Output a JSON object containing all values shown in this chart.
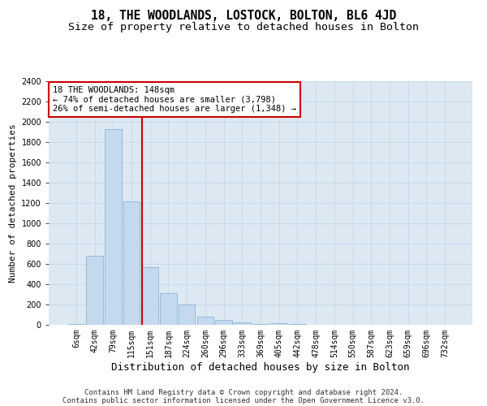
{
  "title1": "18, THE WOODLANDS, LOSTOCK, BOLTON, BL6 4JD",
  "title2": "Size of property relative to detached houses in Bolton",
  "xlabel": "Distribution of detached houses by size in Bolton",
  "ylabel": "Number of detached properties",
  "categories": [
    "6sqm",
    "42sqm",
    "79sqm",
    "115sqm",
    "151sqm",
    "187sqm",
    "224sqm",
    "260sqm",
    "296sqm",
    "333sqm",
    "369sqm",
    "405sqm",
    "442sqm",
    "478sqm",
    "514sqm",
    "550sqm",
    "587sqm",
    "623sqm",
    "659sqm",
    "696sqm",
    "732sqm"
  ],
  "values": [
    10,
    680,
    1930,
    1220,
    570,
    310,
    200,
    80,
    45,
    25,
    5,
    20,
    5,
    2,
    1,
    1,
    0,
    0,
    0,
    0,
    0
  ],
  "bar_color": "#c5d9ee",
  "bar_edge_color": "#7aadd4",
  "vline_x_index": 3.55,
  "vline_color": "#cc0000",
  "annotation_text": "18 THE WOODLANDS: 148sqm\n← 74% of detached houses are smaller (3,798)\n26% of semi-detached houses are larger (1,348) →",
  "annotation_box_color": "#cc0000",
  "ylim": [
    0,
    2400
  ],
  "yticks": [
    0,
    200,
    400,
    600,
    800,
    1000,
    1200,
    1400,
    1600,
    1800,
    2000,
    2200,
    2400
  ],
  "grid_color": "#c5d8e8",
  "bg_color": "#dce8f2",
  "footer_line1": "Contains HM Land Registry data © Crown copyright and database right 2024.",
  "footer_line2": "Contains public sector information licensed under the Open Government Licence v3.0.",
  "title1_fontsize": 10.5,
  "title2_fontsize": 9.5,
  "xlabel_fontsize": 9,
  "ylabel_fontsize": 8,
  "tick_fontsize": 7,
  "footer_fontsize": 6.5,
  "annotation_fontsize": 7.5
}
